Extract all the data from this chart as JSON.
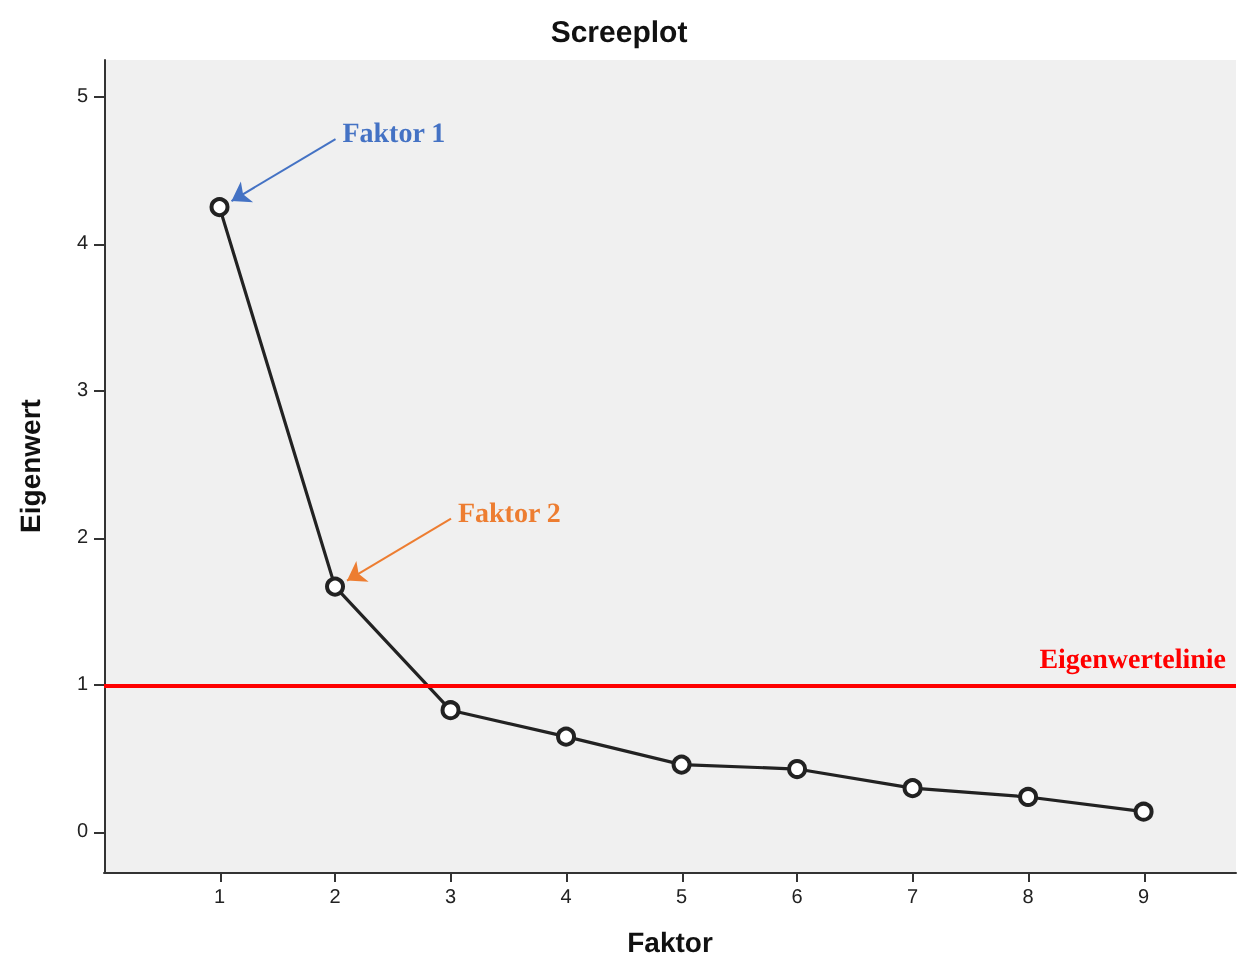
{
  "chart_data": {
    "type": "line",
    "title": "Screeplot",
    "xlabel": "Faktor",
    "ylabel": "Eigenwert",
    "x": [
      1,
      2,
      3,
      4,
      5,
      6,
      7,
      8,
      9
    ],
    "series": [
      {
        "color": "#222222",
        "values": [
          4.25,
          1.67,
          0.83,
          0.65,
          0.46,
          0.43,
          0.3,
          0.24,
          0.14
        ]
      }
    ],
    "xlim": [
      0,
      9.8
    ],
    "xticks": [
      1,
      2,
      3,
      4,
      5,
      6,
      7,
      8,
      9
    ],
    "ylim": [
      -0.27,
      5.25
    ],
    "yticks": [
      0,
      1,
      2,
      3,
      4,
      5
    ],
    "marker": "circle",
    "line_style": "solid",
    "grid": false,
    "ref_lines": [
      {
        "axis": "y",
        "value": 1,
        "label": "Eigenwertelinie",
        "color": "#ff0000"
      }
    ],
    "annotations": [
      {
        "text": "Faktor 1",
        "x": 1,
        "y": 4.25
      },
      {
        "text": "Faktor 2",
        "x": 2,
        "y": 1.67
      }
    ]
  }
}
